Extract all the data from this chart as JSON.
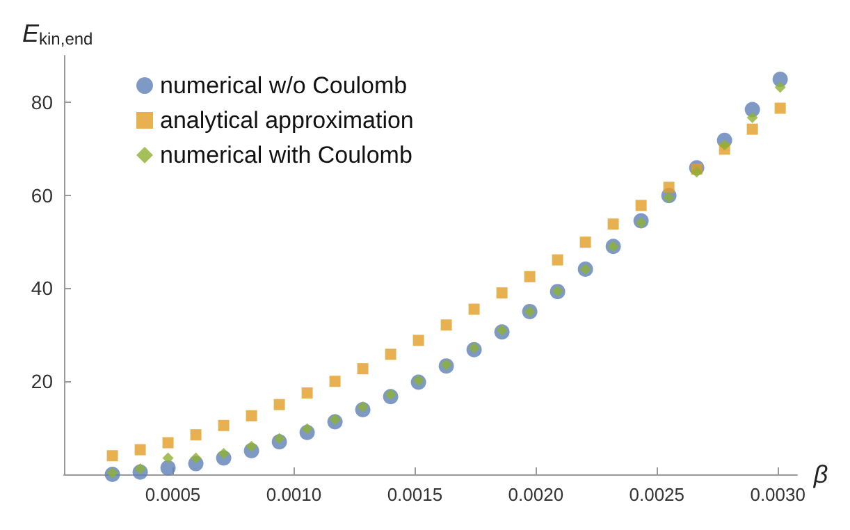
{
  "chart_data": {
    "type": "scatter",
    "xlabel": "β",
    "ylabel": "E$_{kin,end}$",
    "x": [
      0.00025,
      0.000365,
      0.00048,
      0.000595,
      0.00071,
      0.000825,
      0.00094,
      0.001055,
      0.00117,
      0.001285,
      0.0014,
      0.001515,
      0.00163,
      0.001745,
      0.00186,
      0.001975,
      0.00209,
      0.002205,
      0.00232,
      0.002435,
      0.00255,
      0.002665,
      0.00278,
      0.002895,
      0.00301
    ],
    "series": [
      {
        "name": "numerical w/o Coulomb",
        "color": "#5e81b5",
        "marker": "circle",
        "values": [
          0,
          0.5,
          1.4,
          2.3,
          3.5,
          5.1,
          7.0,
          9.0,
          11.3,
          13.9,
          16.7,
          19.8,
          23.3,
          26.8,
          30.6,
          35.0,
          39.3,
          44.1,
          49.0,
          54.5,
          59.9,
          65.9,
          71.8,
          78.4,
          84.9
        ]
      },
      {
        "name": "analytical approximation",
        "color": "#e19c24",
        "marker": "square",
        "values": [
          4.0,
          5.3,
          6.8,
          8.5,
          10.5,
          12.6,
          15.0,
          17.5,
          20.0,
          22.7,
          25.8,
          28.8,
          32.1,
          35.5,
          39.0,
          42.5,
          46.1,
          49.9,
          53.8,
          57.8,
          61.7,
          65.6,
          69.9,
          74.2,
          78.7
        ]
      },
      {
        "name": "numerical with Coulomb",
        "color": "#8fb032",
        "marker": "diamond",
        "values": [
          0.3,
          1.2,
          3.5,
          3.5,
          4.5,
          6.0,
          7.7,
          9.8,
          11.8,
          14.5,
          17.2,
          20.2,
          23.6,
          27.2,
          31.0,
          35.0,
          39.4,
          44.1,
          49.0,
          54.1,
          59.5,
          65.0,
          70.8,
          76.7,
          83.2
        ]
      }
    ],
    "xlim": [
      5e-05,
      0.00308
    ],
    "xticks": [
      {
        "value": 0.0005,
        "label": "0.0005"
      },
      {
        "value": 0.001,
        "label": "0.0010"
      },
      {
        "value": 0.0015,
        "label": "0.0015"
      },
      {
        "value": 0.002,
        "label": "0.0020"
      },
      {
        "value": 0.0025,
        "label": "0.0025"
      },
      {
        "value": 0.003,
        "label": "0.0030"
      }
    ],
    "ylim": [
      0,
      90
    ],
    "yticks": [
      20,
      40,
      60,
      80
    ],
    "grid": false,
    "legend": "top left"
  }
}
